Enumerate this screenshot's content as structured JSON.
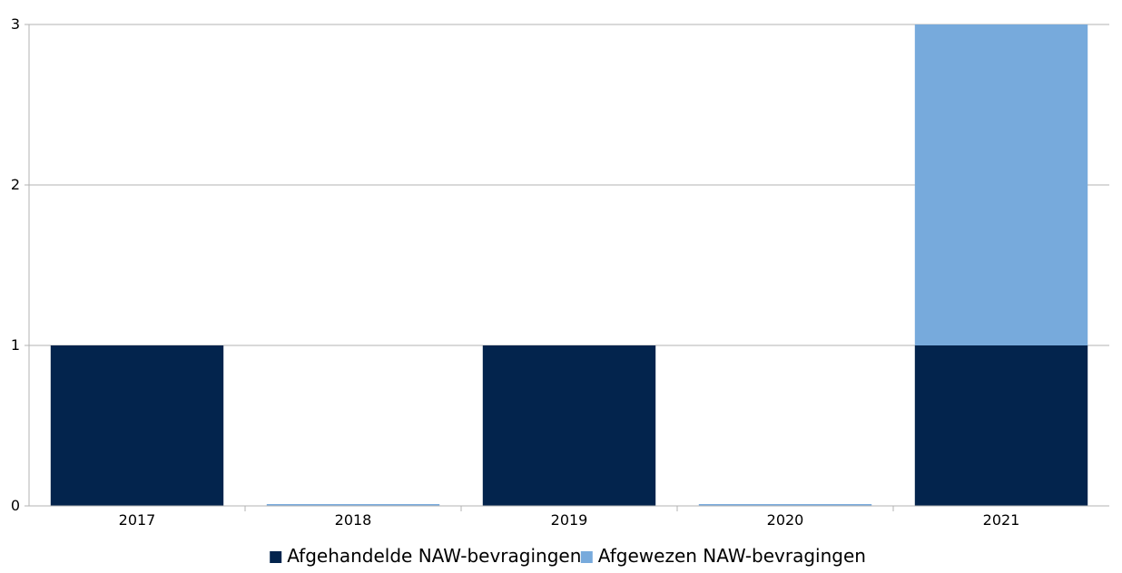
{
  "chart_data": {
    "type": "bar",
    "stacked": true,
    "categories": [
      "2017",
      "2018",
      "2019",
      "2020",
      "2021"
    ],
    "series": [
      {
        "name": "Afgehandelde NAW-bevragingen",
        "values": [
          1,
          0,
          1,
          0,
          1
        ],
        "color": "#03244d"
      },
      {
        "name": "Afgewezen NAW-bevragingen",
        "values": [
          0,
          0,
          0,
          0,
          2
        ],
        "color": "#77aadc"
      }
    ],
    "ylim": [
      0,
      3
    ],
    "yticks": [
      "0",
      "1",
      "2",
      "3"
    ],
    "grid": true,
    "legend_position": "bottom",
    "title": "",
    "xlabel": "",
    "ylabel": ""
  }
}
